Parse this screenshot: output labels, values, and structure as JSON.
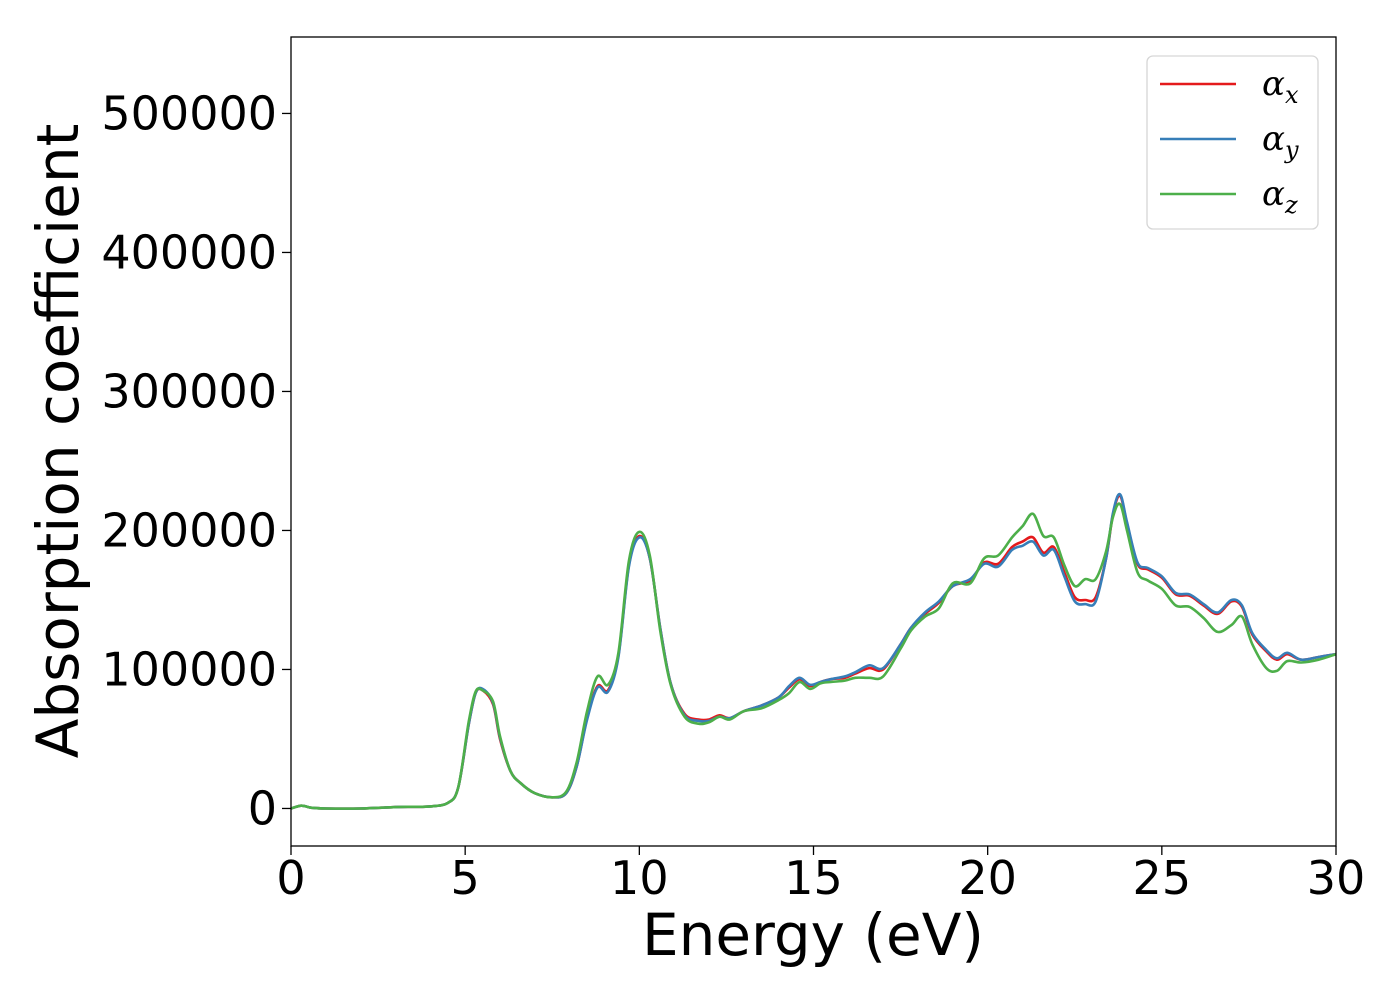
{
  "chart_data": {
    "type": "line",
    "title": "",
    "xlabel": "Energy (eV)",
    "ylabel": "Absorption coefficient",
    "xlim": [
      0,
      30
    ],
    "ylim": [
      -27000,
      555000
    ],
    "xticks": [
      0,
      5,
      10,
      15,
      20,
      25,
      30
    ],
    "xtick_labels": [
      "0",
      "5",
      "10",
      "15",
      "20",
      "25",
      "30"
    ],
    "yticks": [
      0,
      100000,
      200000,
      300000,
      400000,
      500000
    ],
    "ytick_labels": [
      "0",
      "100000",
      "200000",
      "300000",
      "400000",
      "500000"
    ],
    "grid": false,
    "legend_position": "top-right",
    "x": [
      0,
      0.3,
      0.6,
      1,
      2,
      3,
      3.5,
      4,
      4.5,
      4.8,
      5.1,
      5.3,
      5.5,
      5.8,
      6.0,
      6.3,
      6.6,
      7.0,
      7.5,
      7.9,
      8.2,
      8.5,
      8.8,
      9.1,
      9.4,
      9.7,
      10.0,
      10.3,
      10.6,
      10.9,
      11.3,
      11.7,
      12.0,
      12.3,
      12.6,
      13.0,
      13.5,
      14.0,
      14.3,
      14.6,
      14.9,
      15.2,
      15.5,
      15.9,
      16.2,
      16.6,
      17.0,
      17.5,
      17.8,
      18.2,
      18.6,
      19.0,
      19.5,
      19.9,
      20.3,
      20.7,
      21.0,
      21.3,
      21.6,
      21.9,
      22.2,
      22.5,
      22.8,
      23.1,
      23.4,
      23.6,
      23.8,
      24.0,
      24.3,
      24.6,
      25.0,
      25.4,
      25.8,
      26.2,
      26.6,
      27.0,
      27.3,
      27.6,
      28.0,
      28.3,
      28.6,
      29.0,
      29.5,
      30.0
    ],
    "series": [
      {
        "name": "αx",
        "label_base": "α",
        "label_sub": "x",
        "color": "#e41a1c",
        "values": [
          0,
          2000,
          500,
          0,
          0,
          1000,
          1200,
          1500,
          4000,
          15000,
          60000,
          83000,
          85000,
          75000,
          50000,
          27000,
          18000,
          11000,
          8000,
          11000,
          30000,
          65000,
          88000,
          85000,
          110000,
          175000,
          196000,
          180000,
          130000,
          90000,
          68000,
          64000,
          64000,
          67000,
          65000,
          70000,
          74000,
          80000,
          87000,
          93000,
          88000,
          91000,
          93000,
          94000,
          97000,
          101000,
          100000,
          118000,
          130000,
          140000,
          148000,
          160000,
          164000,
          177000,
          176000,
          188000,
          192000,
          195000,
          184000,
          188000,
          170000,
          152000,
          150000,
          152000,
          180000,
          212000,
          225000,
          205000,
          176000,
          172000,
          166000,
          154000,
          153000,
          146000,
          140000,
          149000,
          145000,
          125000,
          113000,
          107000,
          111000,
          107000,
          109000,
          111000
        ]
      },
      {
        "name": "αy",
        "label_base": "α",
        "label_sub": "y",
        "color": "#377eb8",
        "values": [
          0,
          2000,
          500,
          0,
          0,
          1000,
          1200,
          1500,
          4000,
          15000,
          60000,
          83000,
          86000,
          76000,
          51000,
          27000,
          18000,
          11000,
          8000,
          11000,
          30000,
          64000,
          87000,
          84000,
          109000,
          174000,
          195000,
          180000,
          130000,
          90000,
          67000,
          63000,
          63000,
          66000,
          65000,
          70000,
          74000,
          80000,
          88000,
          94000,
          89000,
          91000,
          93000,
          95000,
          98000,
          103000,
          101000,
          118000,
          130000,
          141000,
          149000,
          160000,
          165000,
          176000,
          174000,
          186000,
          189000,
          192000,
          182000,
          186000,
          167000,
          149000,
          147000,
          149000,
          180000,
          213000,
          226000,
          206000,
          177000,
          173000,
          167000,
          155000,
          154000,
          147000,
          141000,
          150000,
          146000,
          126000,
          114000,
          108000,
          112000,
          107000,
          109000,
          111000
        ]
      },
      {
        "name": "αz",
        "label_base": "α",
        "label_sub": "z",
        "color": "#4daf4a",
        "values": [
          0,
          2000,
          500,
          0,
          0,
          1000,
          1200,
          1500,
          4000,
          15000,
          62000,
          84000,
          85000,
          77000,
          52000,
          27000,
          18000,
          11000,
          8000,
          12000,
          33000,
          70000,
          95000,
          89000,
          112000,
          178000,
          199000,
          182000,
          128000,
          89000,
          66000,
          61000,
          62000,
          66000,
          64000,
          70000,
          72000,
          78000,
          83000,
          91000,
          86000,
          90000,
          91000,
          92000,
          94000,
          94000,
          95000,
          115000,
          128000,
          138000,
          144000,
          162000,
          162000,
          180000,
          182000,
          195000,
          203000,
          212000,
          196000,
          195000,
          175000,
          160000,
          165000,
          165000,
          185000,
          210000,
          219000,
          200000,
          170000,
          164000,
          158000,
          146000,
          145000,
          137000,
          127000,
          132000,
          138000,
          118000,
          101000,
          99000,
          106000,
          105000,
          107000,
          111000
        ]
      }
    ]
  }
}
